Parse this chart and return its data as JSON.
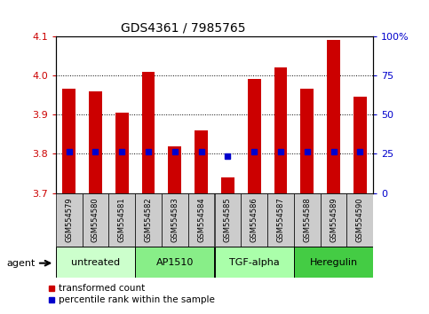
{
  "title": "GDS4361 / 7985765",
  "samples": [
    "GSM554579",
    "GSM554580",
    "GSM554581",
    "GSM554582",
    "GSM554583",
    "GSM554584",
    "GSM554585",
    "GSM554586",
    "GSM554587",
    "GSM554588",
    "GSM554589",
    "GSM554590"
  ],
  "transformed_count": [
    3.965,
    3.96,
    3.905,
    4.01,
    3.82,
    3.86,
    3.74,
    3.99,
    4.02,
    3.965,
    4.09,
    3.945
  ],
  "percentile_rank_y": [
    3.805,
    3.805,
    3.805,
    3.805,
    3.805,
    3.805,
    3.795,
    3.805,
    3.805,
    3.805,
    3.805,
    3.805
  ],
  "ylim": [
    3.7,
    4.1
  ],
  "yticks_left": [
    3.7,
    3.8,
    3.9,
    4.0,
    4.1
  ],
  "yticks_right": [
    0,
    25,
    50,
    75,
    100
  ],
  "bar_color": "#cc0000",
  "dot_color": "#0000cc",
  "agent_groups": [
    {
      "label": "untreated",
      "start": 0,
      "end": 3,
      "color": "#ccffcc"
    },
    {
      "label": "AP1510",
      "start": 3,
      "end": 6,
      "color": "#88ee88"
    },
    {
      "label": "TGF-alpha",
      "start": 6,
      "end": 9,
      "color": "#aaffaa"
    },
    {
      "label": "Heregulin",
      "start": 9,
      "end": 12,
      "color": "#44cc44"
    }
  ],
  "left_tick_color": "#cc0000",
  "right_tick_color": "#0000cc",
  "legend_items": [
    {
      "label": "transformed count",
      "color": "#cc0000",
      "marker": "s"
    },
    {
      "label": "percentile rank within the sample",
      "color": "#0000cc",
      "marker": "s"
    }
  ],
  "bar_width": 0.5,
  "sample_box_color": "#cccccc",
  "figsize": [
    4.83,
    3.54
  ],
  "dpi": 100
}
